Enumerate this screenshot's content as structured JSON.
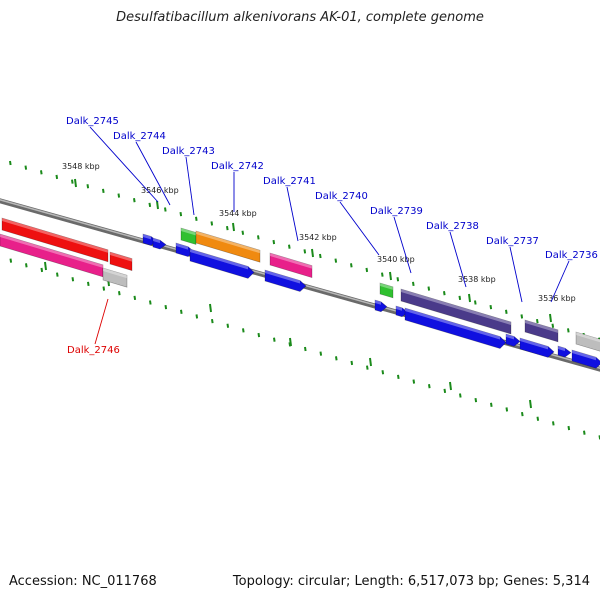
{
  "title": "Desulfatibacillum alkenivorans AK-01, complete genome",
  "accession": "Accession: NC_011768",
  "summary": "Topology: circular; Length: 6,517,073 bp; Genes: 5,314",
  "colors": {
    "backbone": "#7a7a7a",
    "tick": "#1a8a1a",
    "label_blue": "#0000cc",
    "label_red": "#dd0000",
    "cds_blue": "#1010e0",
    "red": "#ee1010",
    "pink": "#e8208a",
    "orange": "#f08a10",
    "green": "#30c030",
    "purple": "#4a3a8a",
    "gray": "#bdbdbd"
  },
  "kbp_marks": [
    "3548 kbp",
    "3546 kbp",
    "3544 kbp",
    "3542 kbp",
    "3540 kbp",
    "3538 kbp",
    "3536 kbp"
  ],
  "gene_labels": [
    {
      "name": "Dalk_2745",
      "color": "blue"
    },
    {
      "name": "Dalk_2744",
      "color": "blue"
    },
    {
      "name": "Dalk_2743",
      "color": "blue"
    },
    {
      "name": "Dalk_2742",
      "color": "blue"
    },
    {
      "name": "Dalk_2741",
      "color": "blue"
    },
    {
      "name": "Dalk_2740",
      "color": "blue"
    },
    {
      "name": "Dalk_2739",
      "color": "blue"
    },
    {
      "name": "Dalk_2738",
      "color": "blue"
    },
    {
      "name": "Dalk_2737",
      "color": "blue"
    },
    {
      "name": "Dalk_2736",
      "color": "blue"
    },
    {
      "name": "Dalk_2746",
      "color": "red"
    }
  ]
}
